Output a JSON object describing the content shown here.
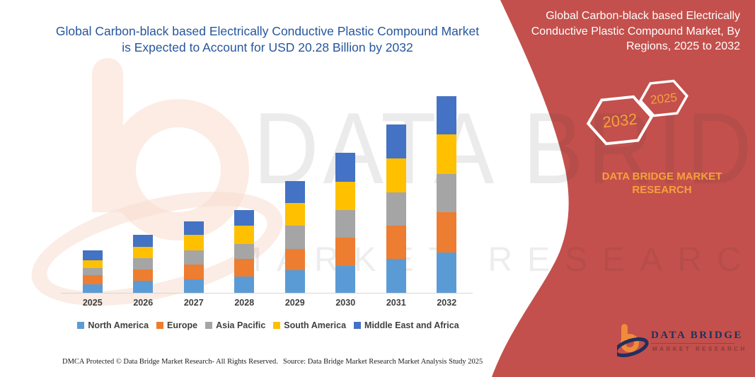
{
  "header": {
    "title": "Global Carbon-black based Electrically Conductive Plastic Compound Market is Expected to Account for USD 20.28 Billion by 2032"
  },
  "side_panel": {
    "title": "Global Carbon-black based Electrically Conductive Plastic Compound Market, By Regions, 2025 to 2032",
    "badges": [
      {
        "label": "2032"
      },
      {
        "label": "2025"
      }
    ],
    "brand_text": "DATA BRIDGE MARKET RESEARCH"
  },
  "logo": {
    "name": "DATA BRIDGE",
    "subtitle": "MARKET RESEARCH"
  },
  "watermark": {
    "line1": "DATA BRIDGE",
    "line2": "MARKET RESEARCH"
  },
  "footer": {
    "left": "DMCA Protected © Data Bridge Market Research-  All Rights Reserved.",
    "source": "Source: Data Bridge Market Research  Market Analysis Study 2025"
  },
  "theme": {
    "panel_red": "#C3504C",
    "title_blue": "#26569D",
    "accent_orange": "#F5A13C",
    "label_gray": "#3F3F3F",
    "axis_line": "#D6D6D6",
    "logo_orange": "#EF8B3A",
    "logo_navy": "#1F3060",
    "logo_maroon": "#8E3A38"
  },
  "chart_data": {
    "type": "bar",
    "subtype": "stacked",
    "title": "Global Carbon-black based Electrically Conductive Plastic Compound Market is Expected to Account for USD 20.28 Billion by 2032",
    "unit": "USD Billion",
    "categories": [
      "2025",
      "2026",
      "2027",
      "2028",
      "2029",
      "2030",
      "2031",
      "2032"
    ],
    "series": [
      {
        "name": "North America",
        "color": "#5B9BD5",
        "values": [
          0.85,
          1.22,
          1.4,
          1.68,
          2.32,
          2.8,
          3.48,
          4.15
        ]
      },
      {
        "name": "Europe",
        "color": "#ED7D31",
        "values": [
          0.97,
          1.18,
          1.53,
          1.8,
          2.2,
          2.92,
          3.45,
          4.15
        ]
      },
      {
        "name": "Asia Pacific",
        "color": "#A5A5A5",
        "values": [
          0.73,
          1.15,
          1.46,
          1.53,
          2.43,
          2.8,
          3.45,
          3.94
        ]
      },
      {
        "name": "South America",
        "color": "#FFC000",
        "values": [
          0.85,
          1.22,
          1.56,
          1.95,
          2.36,
          2.92,
          3.5,
          4.08
        ]
      },
      {
        "name": "Middle East and Africa",
        "color": "#4472C4",
        "values": [
          0.97,
          1.21,
          1.42,
          1.57,
          2.26,
          3.0,
          3.5,
          3.96
        ]
      }
    ],
    "totals": [
      4.37,
      5.98,
      7.37,
      8.53,
      11.57,
      14.44,
      17.38,
      20.28
    ],
    "ylim": [
      0,
      21
    ],
    "grid": false,
    "y_axis_visible": false,
    "legend_position": "bottom"
  }
}
